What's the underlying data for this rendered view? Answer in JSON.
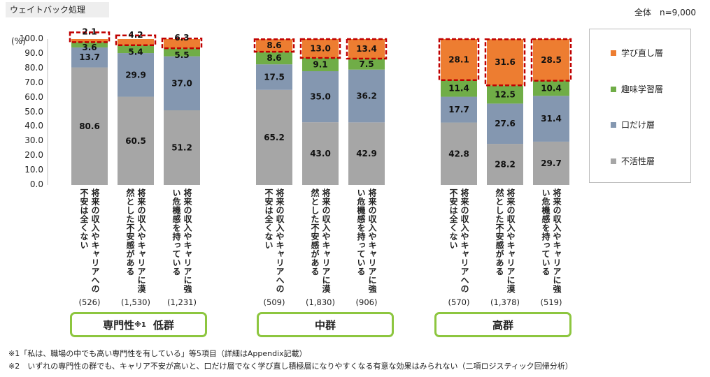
{
  "header": {
    "tag": "ウェイトバック処理",
    "total": "全体　n=9,000"
  },
  "chart_data": {
    "type": "bar",
    "stacked": true,
    "percent": true,
    "y_unit": "(%)",
    "ylim": [
      0,
      100
    ],
    "yticks": [
      "100.0",
      "90.0",
      "80.0",
      "70.0",
      "60.0",
      "50.0",
      "40.0",
      "30.0",
      "20.0",
      "10.0",
      "0.0"
    ],
    "series_order": [
      "不活性層",
      "口だけ層",
      "趣味学習層",
      "学び直し層"
    ],
    "colors": {
      "不活性層": "#a6a6a6",
      "口だけ層": "#8497b0",
      "趣味学習層": "#70ad47",
      "学び直し層": "#ed7d31",
      "highlight_border": "#c00000"
    },
    "groups": [
      {
        "name": "専門性",
        "name_sup": "※1",
        "name_suffix": "低群",
        "bars": [
          {
            "label": "将来の収入やキャリアへの不安は全くない",
            "n": "(526)",
            "values": [
              80.6,
              13.7,
              3.6,
              2.1
            ]
          },
          {
            "label": "将来の収入やキャリアに漠然とした不安感がある",
            "n": "(1,530)",
            "values": [
              60.5,
              29.9,
              5.4,
              4.2
            ]
          },
          {
            "label": "将来の収入やキャリアに強い危機感を持っている",
            "n": "(1,231)",
            "values": [
              51.2,
              37.0,
              5.5,
              6.3
            ]
          }
        ]
      },
      {
        "name": "中群",
        "name_sup": "",
        "name_suffix": "",
        "bars": [
          {
            "label": "将来の収入やキャリアへの不安は全くない",
            "n": "(509)",
            "values": [
              65.2,
              17.5,
              8.6,
              8.6
            ]
          },
          {
            "label": "将来の収入やキャリアに漠然とした不安感がある",
            "n": "(1,830)",
            "values": [
              43.0,
              35.0,
              9.1,
              13.0
            ]
          },
          {
            "label": "将来の収入やキャリアに強い危機感を持っている",
            "n": "(906)",
            "values": [
              42.9,
              36.2,
              7.5,
              13.4
            ]
          }
        ]
      },
      {
        "name": "高群",
        "name_sup": "",
        "name_suffix": "",
        "bars": [
          {
            "label": "将来の収入やキャリアへの不安は全くない",
            "n": "(570)",
            "values": [
              42.8,
              17.7,
              11.4,
              28.1
            ]
          },
          {
            "label": "将来の収入やキャリアに漠然とした不安感がある",
            "n": "(1,378)",
            "values": [
              28.2,
              27.6,
              12.5,
              31.6
            ]
          },
          {
            "label": "将来の収入やキャリアに強い危機感を持っている",
            "n": "(519)",
            "values": [
              29.7,
              31.4,
              10.4,
              28.5
            ]
          }
        ]
      }
    ],
    "legend": [
      "学び直し層",
      "趣味学習層",
      "口だけ層",
      "不活性層"
    ]
  },
  "notes": [
    "※1「私は、職場の中でも高い専門性を有している」等5項目（詳細はAppendix記載）",
    "※2　いずれの専門性の群でも、キャリア不安が高いと、口だけ層でなく学び直し積極層になりやすくなる有意な効果はみられない（二項ロジスティック回帰分析）"
  ]
}
